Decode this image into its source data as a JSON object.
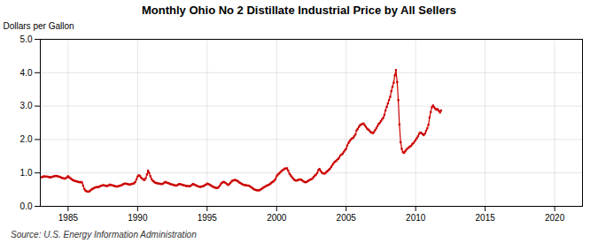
{
  "chart_data": {
    "type": "line",
    "title": "Monthly Ohio No 2 Distillate Industrial Price by All Sellers",
    "ylabel": "Dollars per Gallon",
    "source": "Source: U.S. Energy Information Administration",
    "color": "#cc0000",
    "marker": "square",
    "grid": true,
    "xlim": [
      1983.0,
      2022.0
    ],
    "ylim": [
      0.0,
      5.0
    ],
    "xticks": [
      1985,
      1990,
      1995,
      2000,
      2005,
      2010,
      2015,
      2020
    ],
    "yticks": [
      {
        "value": 0.0,
        "label": "0.0"
      },
      {
        "value": 1.0,
        "label": "1.0"
      },
      {
        "value": 2.0,
        "label": "2.0"
      },
      {
        "value": 3.0,
        "label": "3.0"
      },
      {
        "value": 4.0,
        "label": "4.0"
      },
      {
        "value": 5.0,
        "label": "5.0"
      }
    ],
    "x": [
      1983.08,
      1983.17,
      1983.25,
      1983.33,
      1983.42,
      1983.5,
      1983.58,
      1983.67,
      1983.75,
      1983.83,
      1983.92,
      1984.0,
      1984.08,
      1984.17,
      1984.25,
      1984.33,
      1984.42,
      1984.5,
      1984.58,
      1984.67,
      1984.75,
      1984.83,
      1984.92,
      1985.0,
      1985.08,
      1985.17,
      1985.25,
      1985.33,
      1985.42,
      1985.5,
      1985.58,
      1985.67,
      1985.75,
      1985.83,
      1985.92,
      1986.0,
      1986.08,
      1986.17,
      1986.25,
      1986.33,
      1986.42,
      1986.5,
      1986.58,
      1986.67,
      1986.75,
      1986.83,
      1986.92,
      1987.0,
      1987.08,
      1987.17,
      1987.25,
      1987.33,
      1987.42,
      1987.5,
      1987.58,
      1987.67,
      1987.75,
      1987.83,
      1987.92,
      1988.0,
      1988.08,
      1988.17,
      1988.25,
      1988.33,
      1988.42,
      1988.5,
      1988.58,
      1988.67,
      1988.75,
      1988.83,
      1988.92,
      1989.0,
      1989.08,
      1989.17,
      1989.25,
      1989.33,
      1989.42,
      1989.5,
      1989.58,
      1989.67,
      1989.75,
      1989.83,
      1989.92,
      1990.0,
      1990.08,
      1990.17,
      1990.25,
      1990.33,
      1990.42,
      1990.5,
      1990.58,
      1990.67,
      1990.75,
      1990.83,
      1990.92,
      1991.0,
      1991.08,
      1991.17,
      1991.25,
      1991.33,
      1991.42,
      1991.5,
      1991.58,
      1991.67,
      1991.75,
      1991.83,
      1991.92,
      1992.0,
      1992.08,
      1992.17,
      1992.25,
      1992.33,
      1992.42,
      1992.5,
      1992.58,
      1992.67,
      1992.75,
      1992.83,
      1992.92,
      1993.0,
      1993.08,
      1993.17,
      1993.25,
      1993.33,
      1993.42,
      1993.5,
      1993.58,
      1993.67,
      1993.75,
      1993.83,
      1993.92,
      1994.0,
      1994.08,
      1994.17,
      1994.25,
      1994.33,
      1994.42,
      1994.5,
      1994.58,
      1994.67,
      1994.75,
      1994.83,
      1994.92,
      1995.0,
      1995.08,
      1995.17,
      1995.25,
      1995.33,
      1995.42,
      1995.5,
      1995.58,
      1995.67,
      1995.75,
      1995.83,
      1995.92,
      1996.0,
      1996.08,
      1996.17,
      1996.25,
      1996.33,
      1996.42,
      1996.5,
      1996.58,
      1996.67,
      1996.75,
      1996.83,
      1996.92,
      1997.0,
      1997.08,
      1997.17,
      1997.25,
      1997.33,
      1997.42,
      1997.5,
      1997.58,
      1997.67,
      1997.75,
      1997.83,
      1997.92,
      1998.0,
      1998.08,
      1998.17,
      1998.25,
      1998.33,
      1998.42,
      1998.5,
      1998.58,
      1998.67,
      1998.75,
      1998.83,
      1998.92,
      1999.0,
      1999.08,
      1999.17,
      1999.25,
      1999.33,
      1999.42,
      1999.5,
      1999.58,
      1999.67,
      1999.75,
      1999.83,
      1999.92,
      2000.0,
      2000.08,
      2000.17,
      2000.25,
      2000.33,
      2000.42,
      2000.5,
      2000.58,
      2000.67,
      2000.75,
      2000.83,
      2000.92,
      2001.0,
      2001.08,
      2001.17,
      2001.25,
      2001.33,
      2001.42,
      2001.5,
      2001.58,
      2001.67,
      2001.75,
      2001.83,
      2001.92,
      2002.0,
      2002.08,
      2002.17,
      2002.25,
      2002.33,
      2002.42,
      2002.5,
      2002.58,
      2002.67,
      2002.75,
      2002.83,
      2002.92,
      2003.0,
      2003.08,
      2003.17,
      2003.25,
      2003.33,
      2003.42,
      2003.5,
      2003.58,
      2003.67,
      2003.75,
      2003.83,
      2003.92,
      2004.0,
      2004.08,
      2004.17,
      2004.25,
      2004.33,
      2004.42,
      2004.5,
      2004.58,
      2004.67,
      2004.75,
      2004.83,
      2004.92,
      2005.0,
      2005.08,
      2005.17,
      2005.25,
      2005.33,
      2005.42,
      2005.5,
      2005.58,
      2005.67,
      2005.75,
      2005.83,
      2005.92,
      2006.0,
      2006.08,
      2006.17,
      2006.25,
      2006.33,
      2006.42,
      2006.5,
      2006.58,
      2006.67,
      2006.75,
      2006.83,
      2006.92,
      2007.0,
      2007.08,
      2007.17,
      2007.25,
      2007.33,
      2007.42,
      2007.5,
      2007.58,
      2007.67,
      2007.75,
      2007.83,
      2007.92,
      2008.0,
      2008.08,
      2008.17,
      2008.25,
      2008.33,
      2008.42,
      2008.5,
      2008.58,
      2008.67,
      2008.75,
      2008.83,
      2008.92,
      2009.0,
      2009.08,
      2009.17,
      2009.25,
      2009.33,
      2009.42,
      2009.5,
      2009.58,
      2009.67,
      2009.75,
      2009.83,
      2009.92,
      2010.0,
      2010.08,
      2010.17,
      2010.25,
      2010.33,
      2010.42,
      2010.5,
      2010.58,
      2010.67,
      2010.75,
      2010.83,
      2010.92,
      2011.0,
      2011.08,
      2011.17,
      2011.25,
      2011.33,
      2011.42,
      2011.5,
      2011.58,
      2011.67,
      2011.75,
      2011.83
    ],
    "values": [
      0.87,
      0.88,
      0.9,
      0.89,
      0.89,
      0.89,
      0.88,
      0.87,
      0.87,
      0.88,
      0.89,
      0.9,
      0.91,
      0.91,
      0.9,
      0.89,
      0.88,
      0.86,
      0.85,
      0.84,
      0.83,
      0.84,
      0.87,
      0.9,
      0.87,
      0.84,
      0.81,
      0.79,
      0.77,
      0.76,
      0.75,
      0.74,
      0.73,
      0.72,
      0.73,
      0.71,
      0.62,
      0.52,
      0.47,
      0.45,
      0.44,
      0.44,
      0.47,
      0.5,
      0.52,
      0.54,
      0.56,
      0.57,
      0.58,
      0.57,
      0.59,
      0.61,
      0.62,
      0.63,
      0.63,
      0.62,
      0.61,
      0.61,
      0.63,
      0.65,
      0.64,
      0.63,
      0.62,
      0.61,
      0.6,
      0.59,
      0.6,
      0.61,
      0.62,
      0.63,
      0.65,
      0.67,
      0.68,
      0.68,
      0.67,
      0.66,
      0.65,
      0.66,
      0.67,
      0.68,
      0.69,
      0.73,
      0.81,
      0.89,
      0.93,
      0.91,
      0.86,
      0.83,
      0.8,
      0.79,
      0.84,
      0.95,
      1.07,
      1.0,
      0.9,
      0.82,
      0.77,
      0.74,
      0.71,
      0.7,
      0.69,
      0.68,
      0.68,
      0.67,
      0.67,
      0.68,
      0.71,
      0.73,
      0.71,
      0.7,
      0.69,
      0.67,
      0.66,
      0.65,
      0.64,
      0.63,
      0.62,
      0.63,
      0.65,
      0.67,
      0.66,
      0.65,
      0.64,
      0.63,
      0.62,
      0.61,
      0.61,
      0.6,
      0.6,
      0.62,
      0.65,
      0.67,
      0.65,
      0.63,
      0.62,
      0.6,
      0.59,
      0.58,
      0.59,
      0.6,
      0.61,
      0.63,
      0.65,
      0.68,
      0.67,
      0.65,
      0.63,
      0.61,
      0.59,
      0.57,
      0.56,
      0.55,
      0.55,
      0.58,
      0.62,
      0.68,
      0.71,
      0.73,
      0.72,
      0.7,
      0.67,
      0.64,
      0.66,
      0.7,
      0.74,
      0.77,
      0.78,
      0.79,
      0.78,
      0.76,
      0.74,
      0.71,
      0.69,
      0.67,
      0.65,
      0.64,
      0.63,
      0.63,
      0.62,
      0.62,
      0.6,
      0.57,
      0.55,
      0.52,
      0.5,
      0.49,
      0.48,
      0.48,
      0.48,
      0.5,
      0.52,
      0.55,
      0.57,
      0.59,
      0.61,
      0.63,
      0.64,
      0.66,
      0.69,
      0.72,
      0.74,
      0.77,
      0.82,
      0.9,
      0.95,
      0.98,
      1.01,
      1.05,
      1.08,
      1.1,
      1.13,
      1.13,
      1.14,
      1.07,
      0.98,
      0.93,
      0.89,
      0.84,
      0.8,
      0.78,
      0.77,
      0.78,
      0.8,
      0.8,
      0.8,
      0.78,
      0.75,
      0.73,
      0.72,
      0.73,
      0.76,
      0.78,
      0.8,
      0.81,
      0.84,
      0.88,
      0.92,
      0.95,
      1.0,
      1.08,
      1.12,
      1.06,
      1.01,
      0.99,
      0.98,
      0.99,
      1.03,
      1.06,
      1.09,
      1.12,
      1.18,
      1.23,
      1.28,
      1.33,
      1.35,
      1.38,
      1.42,
      1.46,
      1.52,
      1.55,
      1.58,
      1.63,
      1.68,
      1.73,
      1.82,
      1.9,
      1.95,
      2.0,
      2.03,
      2.05,
      2.1,
      2.15,
      2.27,
      2.32,
      2.38,
      2.43,
      2.45,
      2.47,
      2.48,
      2.43,
      2.38,
      2.33,
      2.3,
      2.27,
      2.23,
      2.21,
      2.19,
      2.22,
      2.28,
      2.34,
      2.4,
      2.46,
      2.5,
      2.55,
      2.6,
      2.65,
      2.74,
      2.87,
      2.98,
      3.08,
      3.18,
      3.28,
      3.45,
      3.58,
      3.7,
      3.92,
      4.08,
      3.72,
      3.18,
      2.45,
      1.92,
      1.72,
      1.62,
      1.6,
      1.65,
      1.7,
      1.73,
      1.76,
      1.79,
      1.81,
      1.86,
      1.89,
      1.94,
      1.99,
      2.04,
      2.1,
      2.17,
      2.21,
      2.19,
      2.16,
      2.13,
      2.18,
      2.26,
      2.33,
      2.44,
      2.66,
      2.82,
      2.97,
      3.02,
      2.97,
      2.92,
      2.89,
      2.91,
      2.86,
      2.81,
      2.87
    ]
  }
}
